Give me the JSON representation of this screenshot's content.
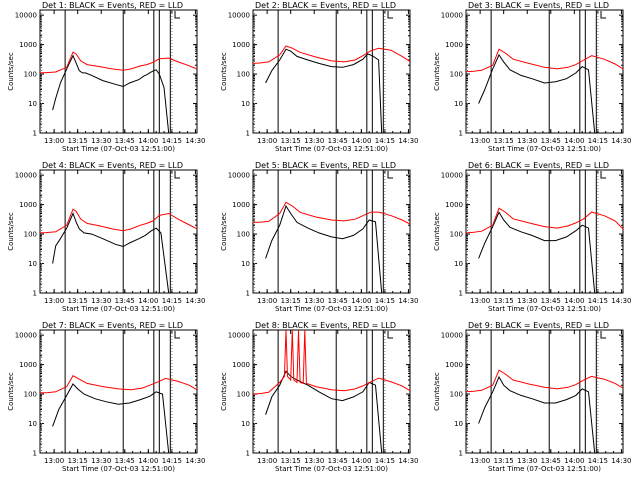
{
  "figure": {
    "ylabel": "Counts/sec",
    "xlabel": "Start Time (07-Oct-03 12:51:00)",
    "x_ticks": [
      "13:00",
      "13:15",
      "13:30",
      "13:45",
      "14:00",
      "14:15",
      "14:30"
    ],
    "y_ticks": [
      "1",
      "10",
      "100",
      "1000",
      "10000"
    ],
    "colors": {
      "events": "#000000",
      "lld": "#ff0000",
      "frame": "#000000"
    }
  },
  "chart_data": [
    {
      "type": "line",
      "title": "Det 1: BLACK = Events, RED = LLD",
      "xlabel": "Start Time (07-Oct-03 12:51:00)",
      "ylabel": "Counts/sec",
      "x_range_min": [
        0,
        100
      ],
      "y_log_range": [
        1,
        15000
      ],
      "y_scale": "log",
      "x_ticks_min": [
        9,
        24,
        39,
        54,
        69,
        84,
        99
      ],
      "vlines_min": [
        16,
        53,
        72.5,
        76,
        83
      ],
      "series": [
        {
          "name": "Events",
          "color": "#000000",
          "x": [
            8,
            10,
            13,
            17,
            21,
            23,
            25,
            27,
            29,
            33,
            40,
            48,
            53,
            57,
            63,
            66,
            68,
            71,
            72.5,
            74,
            76,
            79,
            82
          ],
          "y": [
            6,
            15,
            50,
            150,
            420,
            240,
            130,
            110,
            110,
            90,
            60,
            45,
            38,
            50,
            65,
            85,
            95,
            120,
            130,
            140,
            100,
            35,
            0
          ]
        },
        {
          "name": "LLD",
          "color": "#ff0000",
          "x": [
            0,
            4,
            10,
            17,
            21,
            23,
            26,
            30,
            38,
            46,
            53,
            58,
            64,
            68,
            71,
            72.5,
            76,
            82,
            88,
            94,
            100
          ],
          "y": [
            110,
            112,
            118,
            170,
            560,
            480,
            280,
            210,
            180,
            150,
            135,
            150,
            190,
            210,
            240,
            260,
            330,
            350,
            260,
            200,
            150
          ]
        }
      ]
    },
    {
      "type": "line",
      "title": "Det 2: BLACK = Events, RED = LLD",
      "xlabel": "Start Time (07-Oct-03 12:51:00)",
      "ylabel": "Counts/sec",
      "x_range_min": [
        0,
        100
      ],
      "y_log_range": [
        1,
        15000
      ],
      "y_scale": "log",
      "x_ticks_min": [
        9,
        24,
        39,
        54,
        69,
        84,
        99
      ],
      "vlines_min": [
        16,
        53,
        72.5,
        76,
        83
      ],
      "series": [
        {
          "name": "Events",
          "color": "#000000",
          "x": [
            8,
            12,
            17,
            21,
            24,
            28,
            35,
            42,
            50,
            57,
            64,
            70,
            73,
            76,
            80,
            82
          ],
          "y": [
            50,
            130,
            300,
            700,
            600,
            400,
            300,
            230,
            180,
            170,
            210,
            320,
            480,
            420,
            300,
            0
          ]
        },
        {
          "name": "LLD",
          "color": "#ff0000",
          "x": [
            0,
            5,
            10,
            17,
            21,
            25,
            30,
            40,
            50,
            58,
            65,
            70,
            75,
            80,
            88,
            95,
            100
          ],
          "y": [
            230,
            240,
            260,
            450,
            900,
            760,
            550,
            380,
            280,
            260,
            300,
            420,
            620,
            750,
            650,
            400,
            270
          ]
        }
      ]
    },
    {
      "type": "line",
      "title": "Det 3: BLACK = Events, RED = LLD",
      "xlabel": "Start Time (07-Oct-03 12:51:00)",
      "ylabel": "Counts/sec",
      "x_range_min": [
        0,
        100
      ],
      "y_log_range": [
        1,
        15000
      ],
      "y_scale": "log",
      "x_ticks_min": [
        9,
        24,
        39,
        54,
        69,
        84,
        99
      ],
      "vlines_min": [
        16,
        53,
        72.5,
        76,
        83
      ],
      "series": [
        {
          "name": "Events",
          "color": "#000000",
          "x": [
            8,
            12,
            17,
            21,
            24,
            28,
            35,
            42,
            50,
            57,
            64,
            70,
            74,
            78,
            82
          ],
          "y": [
            10,
            30,
            150,
            450,
            260,
            140,
            90,
            70,
            50,
            55,
            70,
            110,
            180,
            140,
            0
          ]
        },
        {
          "name": "LLD",
          "color": "#ff0000",
          "x": [
            0,
            5,
            10,
            17,
            21,
            25,
            30,
            40,
            50,
            58,
            65,
            70,
            75,
            80,
            88,
            95,
            100
          ],
          "y": [
            120,
            125,
            135,
            200,
            700,
            520,
            320,
            230,
            170,
            150,
            170,
            210,
            300,
            420,
            320,
            220,
            150
          ]
        }
      ]
    },
    {
      "type": "line",
      "title": "Det 4: BLACK = Events, RED = LLD",
      "xlabel": "Start Time (07-Oct-03 12:51:00)",
      "ylabel": "Counts/sec",
      "x_range_min": [
        0,
        100
      ],
      "y_log_range": [
        1,
        15000
      ],
      "y_scale": "log",
      "x_ticks_min": [
        9,
        24,
        39,
        54,
        69,
        84,
        99
      ],
      "vlines_min": [
        16,
        53,
        72.5,
        76,
        83
      ],
      "series": [
        {
          "name": "Events",
          "color": "#000000",
          "x": [
            8,
            10,
            13,
            17,
            21,
            23,
            25,
            28,
            33,
            40,
            48,
            53,
            57,
            63,
            67,
            71,
            74,
            77,
            82
          ],
          "y": [
            10,
            40,
            70,
            160,
            500,
            260,
            150,
            110,
            100,
            70,
            45,
            38,
            50,
            70,
            90,
            130,
            160,
            110,
            0
          ]
        },
        {
          "name": "LLD",
          "color": "#ff0000",
          "x": [
            0,
            4,
            10,
            17,
            21,
            23,
            26,
            30,
            38,
            46,
            53,
            58,
            64,
            68,
            72,
            76,
            82,
            88,
            94,
            100
          ],
          "y": [
            110,
            112,
            120,
            200,
            700,
            600,
            320,
            230,
            190,
            150,
            130,
            150,
            200,
            230,
            280,
            430,
            500,
            320,
            220,
            150
          ]
        }
      ]
    },
    {
      "type": "line",
      "title": "Det 5: BLACK = Events, RED = LLD",
      "xlabel": "Start Time (07-Oct-03 12:51:00)",
      "ylabel": "Counts/sec",
      "x_range_min": [
        0,
        100
      ],
      "y_log_range": [
        1,
        15000
      ],
      "y_scale": "log",
      "x_ticks_min": [
        9,
        24,
        39,
        54,
        69,
        84,
        99
      ],
      "vlines_min": [
        16,
        53,
        72.5,
        76,
        83
      ],
      "series": [
        {
          "name": "Events",
          "color": "#000000",
          "x": [
            8,
            12,
            17,
            21,
            24,
            28,
            35,
            42,
            50,
            57,
            64,
            70,
            74,
            78,
            82
          ],
          "y": [
            15,
            60,
            200,
            900,
            500,
            250,
            160,
            110,
            80,
            70,
            90,
            150,
            300,
            260,
            0
          ]
        },
        {
          "name": "LLD",
          "color": "#ff0000",
          "x": [
            0,
            5,
            10,
            17,
            21,
            25,
            30,
            40,
            50,
            58,
            65,
            70,
            75,
            80,
            88,
            95,
            100
          ],
          "y": [
            250,
            255,
            270,
            500,
            1200,
            900,
            550,
            380,
            300,
            280,
            320,
            420,
            560,
            560,
            420,
            300,
            220
          ]
        }
      ]
    },
    {
      "type": "line",
      "title": "Det 6: BLACK = Events, RED = LLD",
      "xlabel": "Start Time (07-Oct-03 12:51:00)",
      "ylabel": "Counts/sec",
      "x_range_min": [
        0,
        100
      ],
      "y_log_range": [
        1,
        15000
      ],
      "y_scale": "log",
      "x_ticks_min": [
        9,
        24,
        39,
        54,
        69,
        84,
        99
      ],
      "vlines_min": [
        16,
        53,
        72.5,
        76,
        83
      ],
      "series": [
        {
          "name": "Events",
          "color": "#000000",
          "x": [
            8,
            12,
            17,
            21,
            24,
            28,
            35,
            42,
            50,
            57,
            64,
            70,
            74,
            78,
            82
          ],
          "y": [
            15,
            50,
            180,
            550,
            300,
            170,
            120,
            90,
            60,
            60,
            80,
            130,
            200,
            160,
            0
          ]
        },
        {
          "name": "LLD",
          "color": "#ff0000",
          "x": [
            0,
            5,
            10,
            17,
            21,
            25,
            30,
            40,
            50,
            58,
            65,
            70,
            75,
            80,
            88,
            95,
            100
          ],
          "y": [
            110,
            115,
            125,
            200,
            750,
            560,
            330,
            240,
            180,
            160,
            190,
            240,
            330,
            560,
            420,
            280,
            150
          ]
        }
      ]
    },
    {
      "type": "line",
      "title": "Det 7: BLACK = Events, RED = LLD",
      "xlabel": "Start Time (07-Oct-03 12:51:00)",
      "ylabel": "Counts/sec",
      "x_range_min": [
        0,
        100
      ],
      "y_log_range": [
        1,
        15000
      ],
      "y_scale": "log",
      "x_ticks_min": [
        9,
        24,
        39,
        54,
        69,
        84,
        99
      ],
      "vlines_min": [
        16,
        53,
        72.5,
        76,
        83
      ],
      "series": [
        {
          "name": "Events",
          "color": "#000000",
          "x": [
            8,
            12,
            17,
            21,
            24,
            28,
            35,
            42,
            50,
            57,
            64,
            70,
            74,
            78,
            82
          ],
          "y": [
            8,
            30,
            90,
            220,
            150,
            100,
            70,
            55,
            45,
            50,
            65,
            85,
            120,
            100,
            0
          ]
        },
        {
          "name": "LLD",
          "color": "#ff0000",
          "x": [
            0,
            5,
            10,
            17,
            21,
            25,
            30,
            40,
            50,
            58,
            65,
            70,
            75,
            80,
            88,
            95,
            100
          ],
          "y": [
            110,
            112,
            120,
            180,
            420,
            320,
            230,
            180,
            150,
            140,
            160,
            200,
            260,
            340,
            270,
            200,
            140
          ]
        }
      ]
    },
    {
      "type": "line",
      "title": "Det 8: BLACK = Events, RED = LLD",
      "xlabel": "Start Time (07-Oct-03 12:51:00)",
      "ylabel": "Counts/sec",
      "x_range_min": [
        0,
        100
      ],
      "y_log_range": [
        1,
        15000
      ],
      "y_scale": "log",
      "x_ticks_min": [
        9,
        24,
        39,
        54,
        69,
        84,
        99
      ],
      "vlines_min": [
        16,
        53,
        72.5,
        76,
        83
      ],
      "series": [
        {
          "name": "Events",
          "color": "#000000",
          "x": [
            8,
            12,
            17,
            21,
            24,
            28,
            35,
            42,
            50,
            57,
            64,
            70,
            74,
            78,
            82
          ],
          "y": [
            20,
            80,
            200,
            600,
            400,
            300,
            200,
            120,
            70,
            60,
            80,
            120,
            250,
            200,
            0
          ]
        },
        {
          "name": "LLD",
          "color": "#ff0000",
          "x": [
            0,
            5,
            10,
            17,
            20,
            21,
            22,
            24,
            25,
            26,
            28,
            29,
            30,
            32,
            33,
            34,
            40,
            50,
            58,
            65,
            70,
            75,
            80,
            88,
            95,
            100
          ],
          "y": [
            100,
            105,
            115,
            250,
            400,
            15000,
            400,
            300,
            15000,
            300,
            250,
            15000,
            250,
            230,
            15000,
            230,
            180,
            140,
            130,
            150,
            190,
            260,
            350,
            260,
            190,
            130
          ]
        }
      ]
    },
    {
      "type": "line",
      "title": "Det 9: BLACK = Events, RED = LLD",
      "xlabel": "Start Time (07-Oct-03 12:51:00)",
      "ylabel": "Counts/sec",
      "x_range_min": [
        0,
        100
      ],
      "y_log_range": [
        1,
        15000
      ],
      "y_scale": "log",
      "x_ticks_min": [
        9,
        24,
        39,
        54,
        69,
        84,
        99
      ],
      "vlines_min": [
        16,
        53,
        72.5,
        76,
        83
      ],
      "series": [
        {
          "name": "Events",
          "color": "#000000",
          "x": [
            8,
            12,
            17,
            21,
            24,
            28,
            35,
            42,
            50,
            57,
            64,
            70,
            74,
            78,
            82
          ],
          "y": [
            10,
            35,
            120,
            380,
            200,
            130,
            90,
            70,
            50,
            50,
            65,
            90,
            150,
            120,
            0
          ]
        },
        {
          "name": "LLD",
          "color": "#ff0000",
          "x": [
            0,
            5,
            10,
            17,
            21,
            25,
            30,
            40,
            50,
            58,
            65,
            70,
            75,
            80,
            88,
            95,
            100
          ],
          "y": [
            120,
            125,
            135,
            200,
            650,
            480,
            300,
            220,
            170,
            150,
            170,
            210,
            300,
            400,
            320,
            230,
            160
          ]
        }
      ]
    }
  ]
}
